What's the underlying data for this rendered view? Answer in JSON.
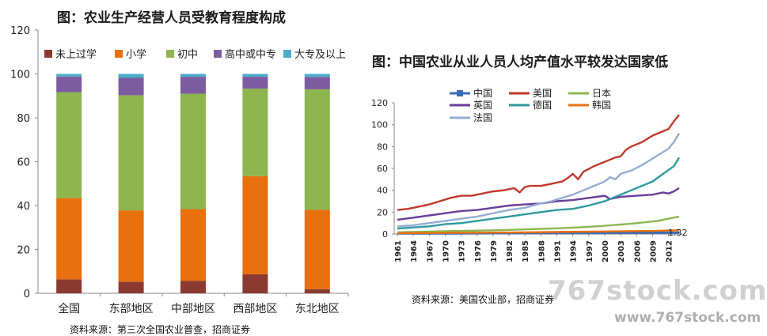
{
  "left_chart": {
    "title": "图：农业生产经营人员受教育程度构成",
    "source": "资料来源：第三次全国农业普查，招商证券",
    "chart_data": {
      "type": "bar",
      "stacked": true,
      "categories": [
        "全国",
        "东部地区",
        "中部地区",
        "西部地区",
        "东北地区"
      ],
      "series": [
        {
          "name": "未上过学",
          "color": "#8B3A32",
          "values": [
            6.4,
            5.3,
            5.7,
            8.7,
            1.9
          ]
        },
        {
          "name": "小学",
          "color": "#E8700F",
          "values": [
            37.0,
            32.5,
            32.7,
            44.7,
            36.1
          ]
        },
        {
          "name": "初中",
          "color": "#8DB64F",
          "values": [
            48.3,
            52.5,
            52.6,
            39.9,
            55.0
          ]
        },
        {
          "name": "高中或中专",
          "color": "#7D5BA0",
          "values": [
            7.1,
            7.9,
            7.7,
            5.4,
            5.6
          ]
        },
        {
          "name": "大专及以上",
          "color": "#4BACC6",
          "values": [
            1.2,
            1.8,
            1.3,
            1.3,
            1.4
          ]
        }
      ],
      "yticks": [
        "0",
        "20",
        "40",
        "60",
        "80",
        "100",
        "120"
      ],
      "ylim": [
        0,
        120
      ],
      "legend_position": "top",
      "grid": false
    }
  },
  "right_chart": {
    "title": "图：中国农业从业人员人均产值水平较发达国家低",
    "source": "资料来源：美国农业部，招商证券",
    "chart_data": {
      "type": "line",
      "x_start": 1961,
      "x_end": 2014,
      "xticks": [
        "1961",
        "1964",
        "1967",
        "1970",
        "1973",
        "1976",
        "1979",
        "1982",
        "1985",
        "1988",
        "1991",
        "1994",
        "1997",
        "2000",
        "2003",
        "2006",
        "2009",
        "2012"
      ],
      "yticks": [
        "0",
        "20",
        "40",
        "60",
        "80",
        "100",
        "120"
      ],
      "ylim": [
        0,
        120
      ],
      "legend_position": "top-left",
      "grid": false,
      "end_label": "1.32",
      "series": [
        {
          "name": "中国",
          "color": "#3A6BB5",
          "points": [
            [
              1961,
              0.5
            ],
            [
              1970,
              0.6
            ],
            [
              1980,
              0.7
            ],
            [
              1990,
              0.9
            ],
            [
              2000,
              1.0
            ],
            [
              2005,
              1.1
            ],
            [
              2010,
              1.25
            ],
            [
              2014,
              1.32
            ]
          ]
        },
        {
          "name": "美国",
          "color": "#C0392B",
          "points": [
            [
              1961,
              22
            ],
            [
              1963,
              23
            ],
            [
              1965,
              25
            ],
            [
              1967,
              27
            ],
            [
              1969,
              30
            ],
            [
              1971,
              33
            ],
            [
              1973,
              35
            ],
            [
              1975,
              35
            ],
            [
              1977,
              37
            ],
            [
              1979,
              39
            ],
            [
              1981,
              40
            ],
            [
              1983,
              42
            ],
            [
              1984,
              38
            ],
            [
              1985,
              43
            ],
            [
              1986,
              44
            ],
            [
              1988,
              44
            ],
            [
              1990,
              46
            ],
            [
              1992,
              48
            ],
            [
              1993,
              51
            ],
            [
              1994,
              55
            ],
            [
              1995,
              50
            ],
            [
              1996,
              57
            ],
            [
              1998,
              62
            ],
            [
              2000,
              66
            ],
            [
              2002,
              70
            ],
            [
              2003,
              71
            ],
            [
              2004,
              77
            ],
            [
              2005,
              80
            ],
            [
              2007,
              84
            ],
            [
              2009,
              90
            ],
            [
              2011,
              94
            ],
            [
              2012,
              96
            ],
            [
              2013,
              103
            ],
            [
              2014,
              109
            ]
          ]
        },
        {
          "name": "日本",
          "color": "#8DB64F",
          "points": [
            [
              1961,
              1.5
            ],
            [
              1970,
              2.5
            ],
            [
              1980,
              3.5
            ],
            [
              1990,
              5
            ],
            [
              1995,
              6
            ],
            [
              2000,
              7.5
            ],
            [
              2005,
              9.5
            ],
            [
              2010,
              12
            ],
            [
              2012,
              14
            ],
            [
              2014,
              16
            ]
          ]
        },
        {
          "name": "英国",
          "color": "#6A3D9A",
          "points": [
            [
              1961,
              13
            ],
            [
              1964,
              15
            ],
            [
              1967,
              17
            ],
            [
              1970,
              19
            ],
            [
              1973,
              21
            ],
            [
              1976,
              22
            ],
            [
              1979,
              24
            ],
            [
              1982,
              26
            ],
            [
              1985,
              27
            ],
            [
              1988,
              28
            ],
            [
              1991,
              30
            ],
            [
              1994,
              31
            ],
            [
              1997,
              33
            ],
            [
              2000,
              35
            ],
            [
              2001,
              32
            ],
            [
              2003,
              34
            ],
            [
              2006,
              35
            ],
            [
              2009,
              36
            ],
            [
              2011,
              38
            ],
            [
              2012,
              37
            ],
            [
              2013,
              39
            ],
            [
              2014,
              42
            ]
          ]
        },
        {
          "name": "德国",
          "color": "#2E9AA0",
          "points": [
            [
              1961,
              5
            ],
            [
              1964,
              6
            ],
            [
              1967,
              7
            ],
            [
              1970,
              9
            ],
            [
              1973,
              10
            ],
            [
              1976,
              12
            ],
            [
              1979,
              14
            ],
            [
              1982,
              16
            ],
            [
              1985,
              18
            ],
            [
              1988,
              20
            ],
            [
              1991,
              22
            ],
            [
              1994,
              23
            ],
            [
              1997,
              26
            ],
            [
              2000,
              30
            ],
            [
              2003,
              36
            ],
            [
              2005,
              40
            ],
            [
              2007,
              44
            ],
            [
              2009,
              48
            ],
            [
              2011,
              55
            ],
            [
              2013,
              62
            ],
            [
              2014,
              70
            ]
          ]
        },
        {
          "name": "韩国",
          "color": "#E8700F",
          "points": [
            [
              1961,
              0.8
            ],
            [
              1970,
              1
            ],
            [
              1980,
              1.3
            ],
            [
              1990,
              1.8
            ],
            [
              2000,
              2.3
            ],
            [
              2010,
              3
            ],
            [
              2014,
              3.5
            ]
          ]
        },
        {
          "name": "法国",
          "color": "#95ADD3",
          "points": [
            [
              1961,
              7
            ],
            [
              1964,
              8
            ],
            [
              1967,
              10
            ],
            [
              1970,
              12
            ],
            [
              1973,
              14
            ],
            [
              1976,
              16
            ],
            [
              1979,
              19
            ],
            [
              1982,
              22
            ],
            [
              1985,
              24
            ],
            [
              1988,
              28
            ],
            [
              1990,
              30
            ],
            [
              1992,
              33
            ],
            [
              1994,
              36
            ],
            [
              1996,
              40
            ],
            [
              1998,
              44
            ],
            [
              2000,
              48
            ],
            [
              2001,
              52
            ],
            [
              2002,
              50
            ],
            [
              2003,
              55
            ],
            [
              2005,
              58
            ],
            [
              2007,
              63
            ],
            [
              2008,
              66
            ],
            [
              2010,
              72
            ],
            [
              2012,
              78
            ],
            [
              2013,
              84
            ],
            [
              2014,
              92
            ]
          ]
        }
      ]
    }
  },
  "watermark": {
    "main": "767stock.com",
    "sub": "www.767stock.com"
  }
}
